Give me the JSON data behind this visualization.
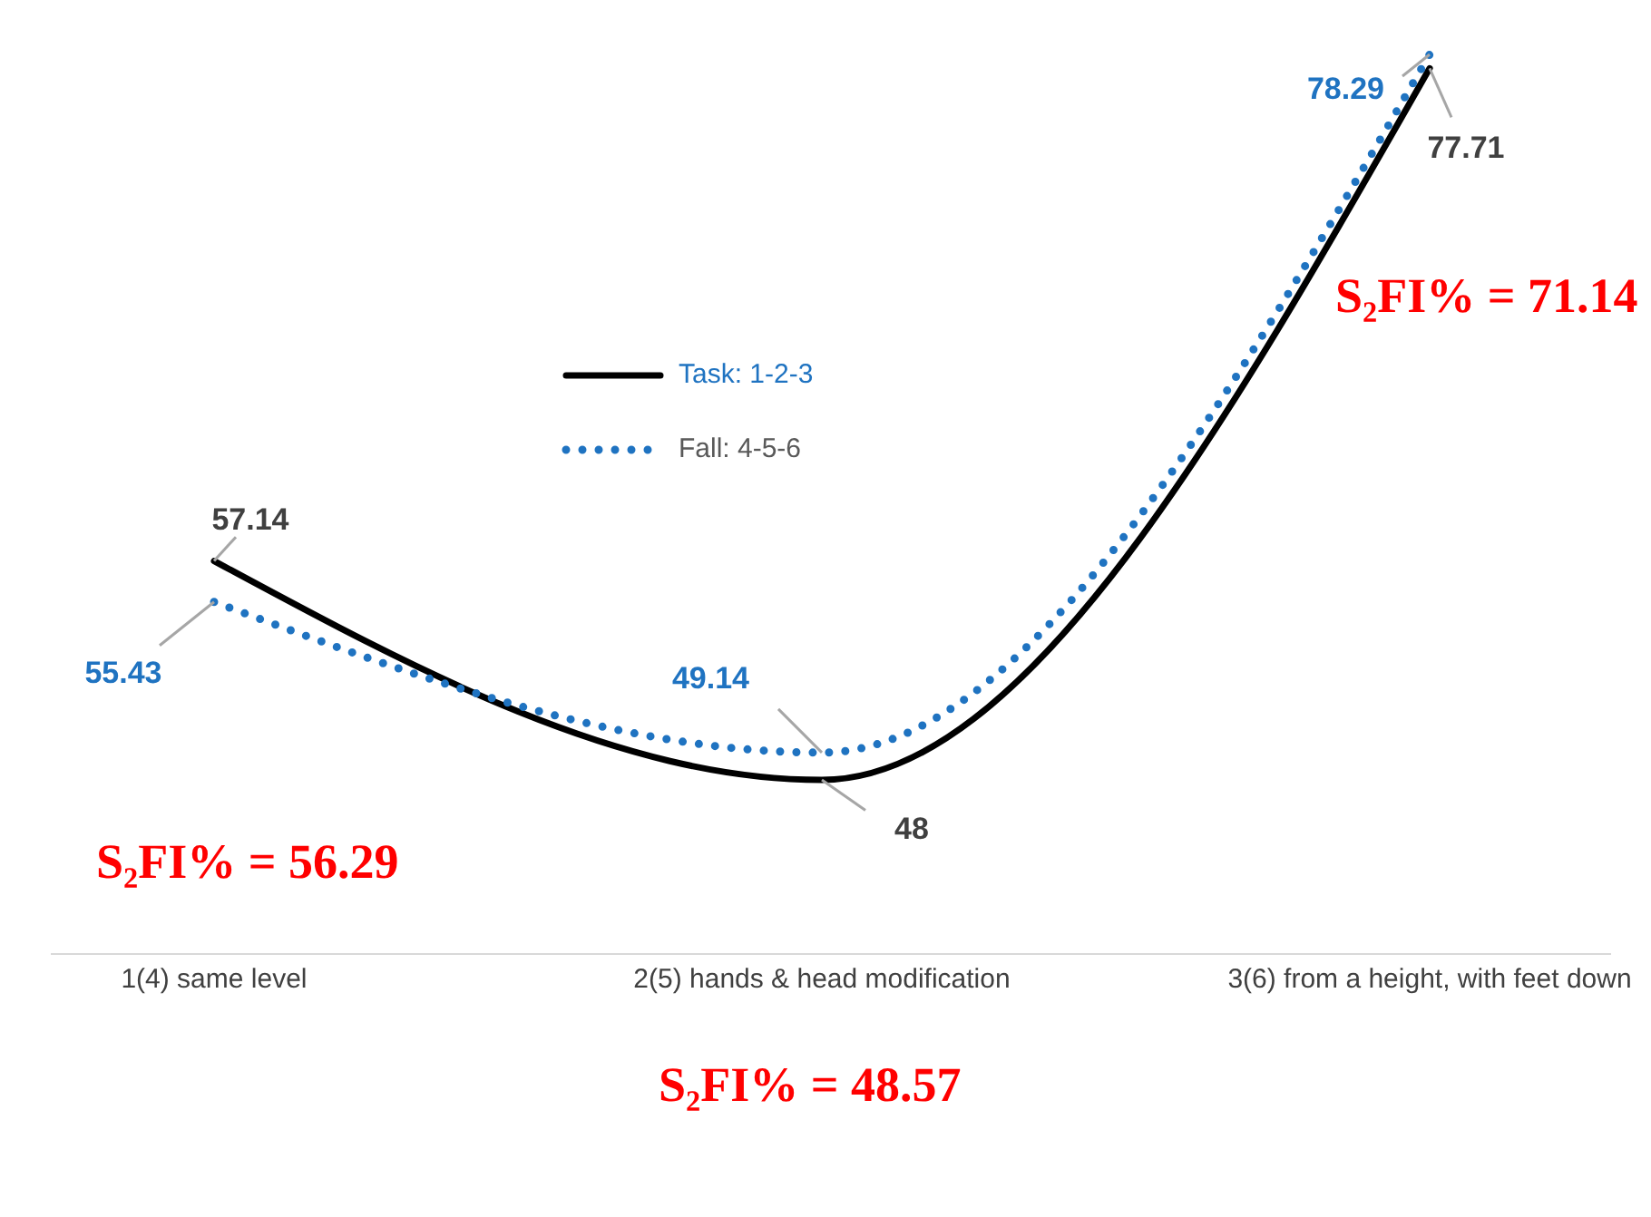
{
  "chart_data": {
    "type": "line",
    "categories": [
      "1(4) same level",
      "2(5) hands & head modification",
      "3(6) from a height, with feet down"
    ],
    "series": [
      {
        "name": "Task: 1-2-3",
        "color": "#000000",
        "values": [
          57.14,
          48,
          77.71
        ],
        "line_style": "solid"
      },
      {
        "name": "Fall: 4-5-6",
        "color": "#1f73c1",
        "values": [
          55.43,
          49.14,
          78.29
        ],
        "line_style": "dotted"
      }
    ],
    "data_labels": true,
    "legend": "top left",
    "marker": "none",
    "grid": false,
    "annotations": [
      "S₂FI% = 56.29",
      "S₂FI% = 48.57",
      "S₂FI% = 71.14"
    ]
  }
}
